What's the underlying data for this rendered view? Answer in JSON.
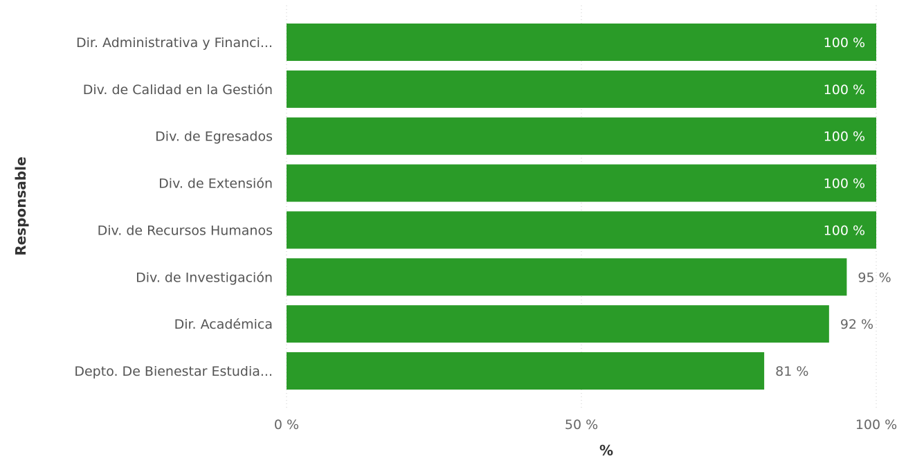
{
  "chart_data": {
    "type": "bar",
    "orientation": "horizontal",
    "xlabel": "%",
    "ylabel": "Responsable",
    "xlim": [
      0,
      100
    ],
    "x_ticks": [
      "0 %",
      "50 %",
      "100 %"
    ],
    "categories": [
      "Dir. Administrativa y Financi...",
      "Div. de Calidad en la Gestión",
      "Div. de Egresados",
      "Div. de Extensión",
      "Div. de Recursos Humanos",
      "Div. de Investigación",
      "Dir. Académica",
      "Depto. De Bienestar Estudia..."
    ],
    "values": [
      100,
      100,
      100,
      100,
      100,
      95,
      92,
      81
    ],
    "data_labels": [
      "100 %",
      "100 %",
      "100 %",
      "100 %",
      "100 %",
      "95 %",
      "92 %",
      "81 %"
    ],
    "grid": "vertical-dotted",
    "bar_color": "#2a9b28"
  }
}
